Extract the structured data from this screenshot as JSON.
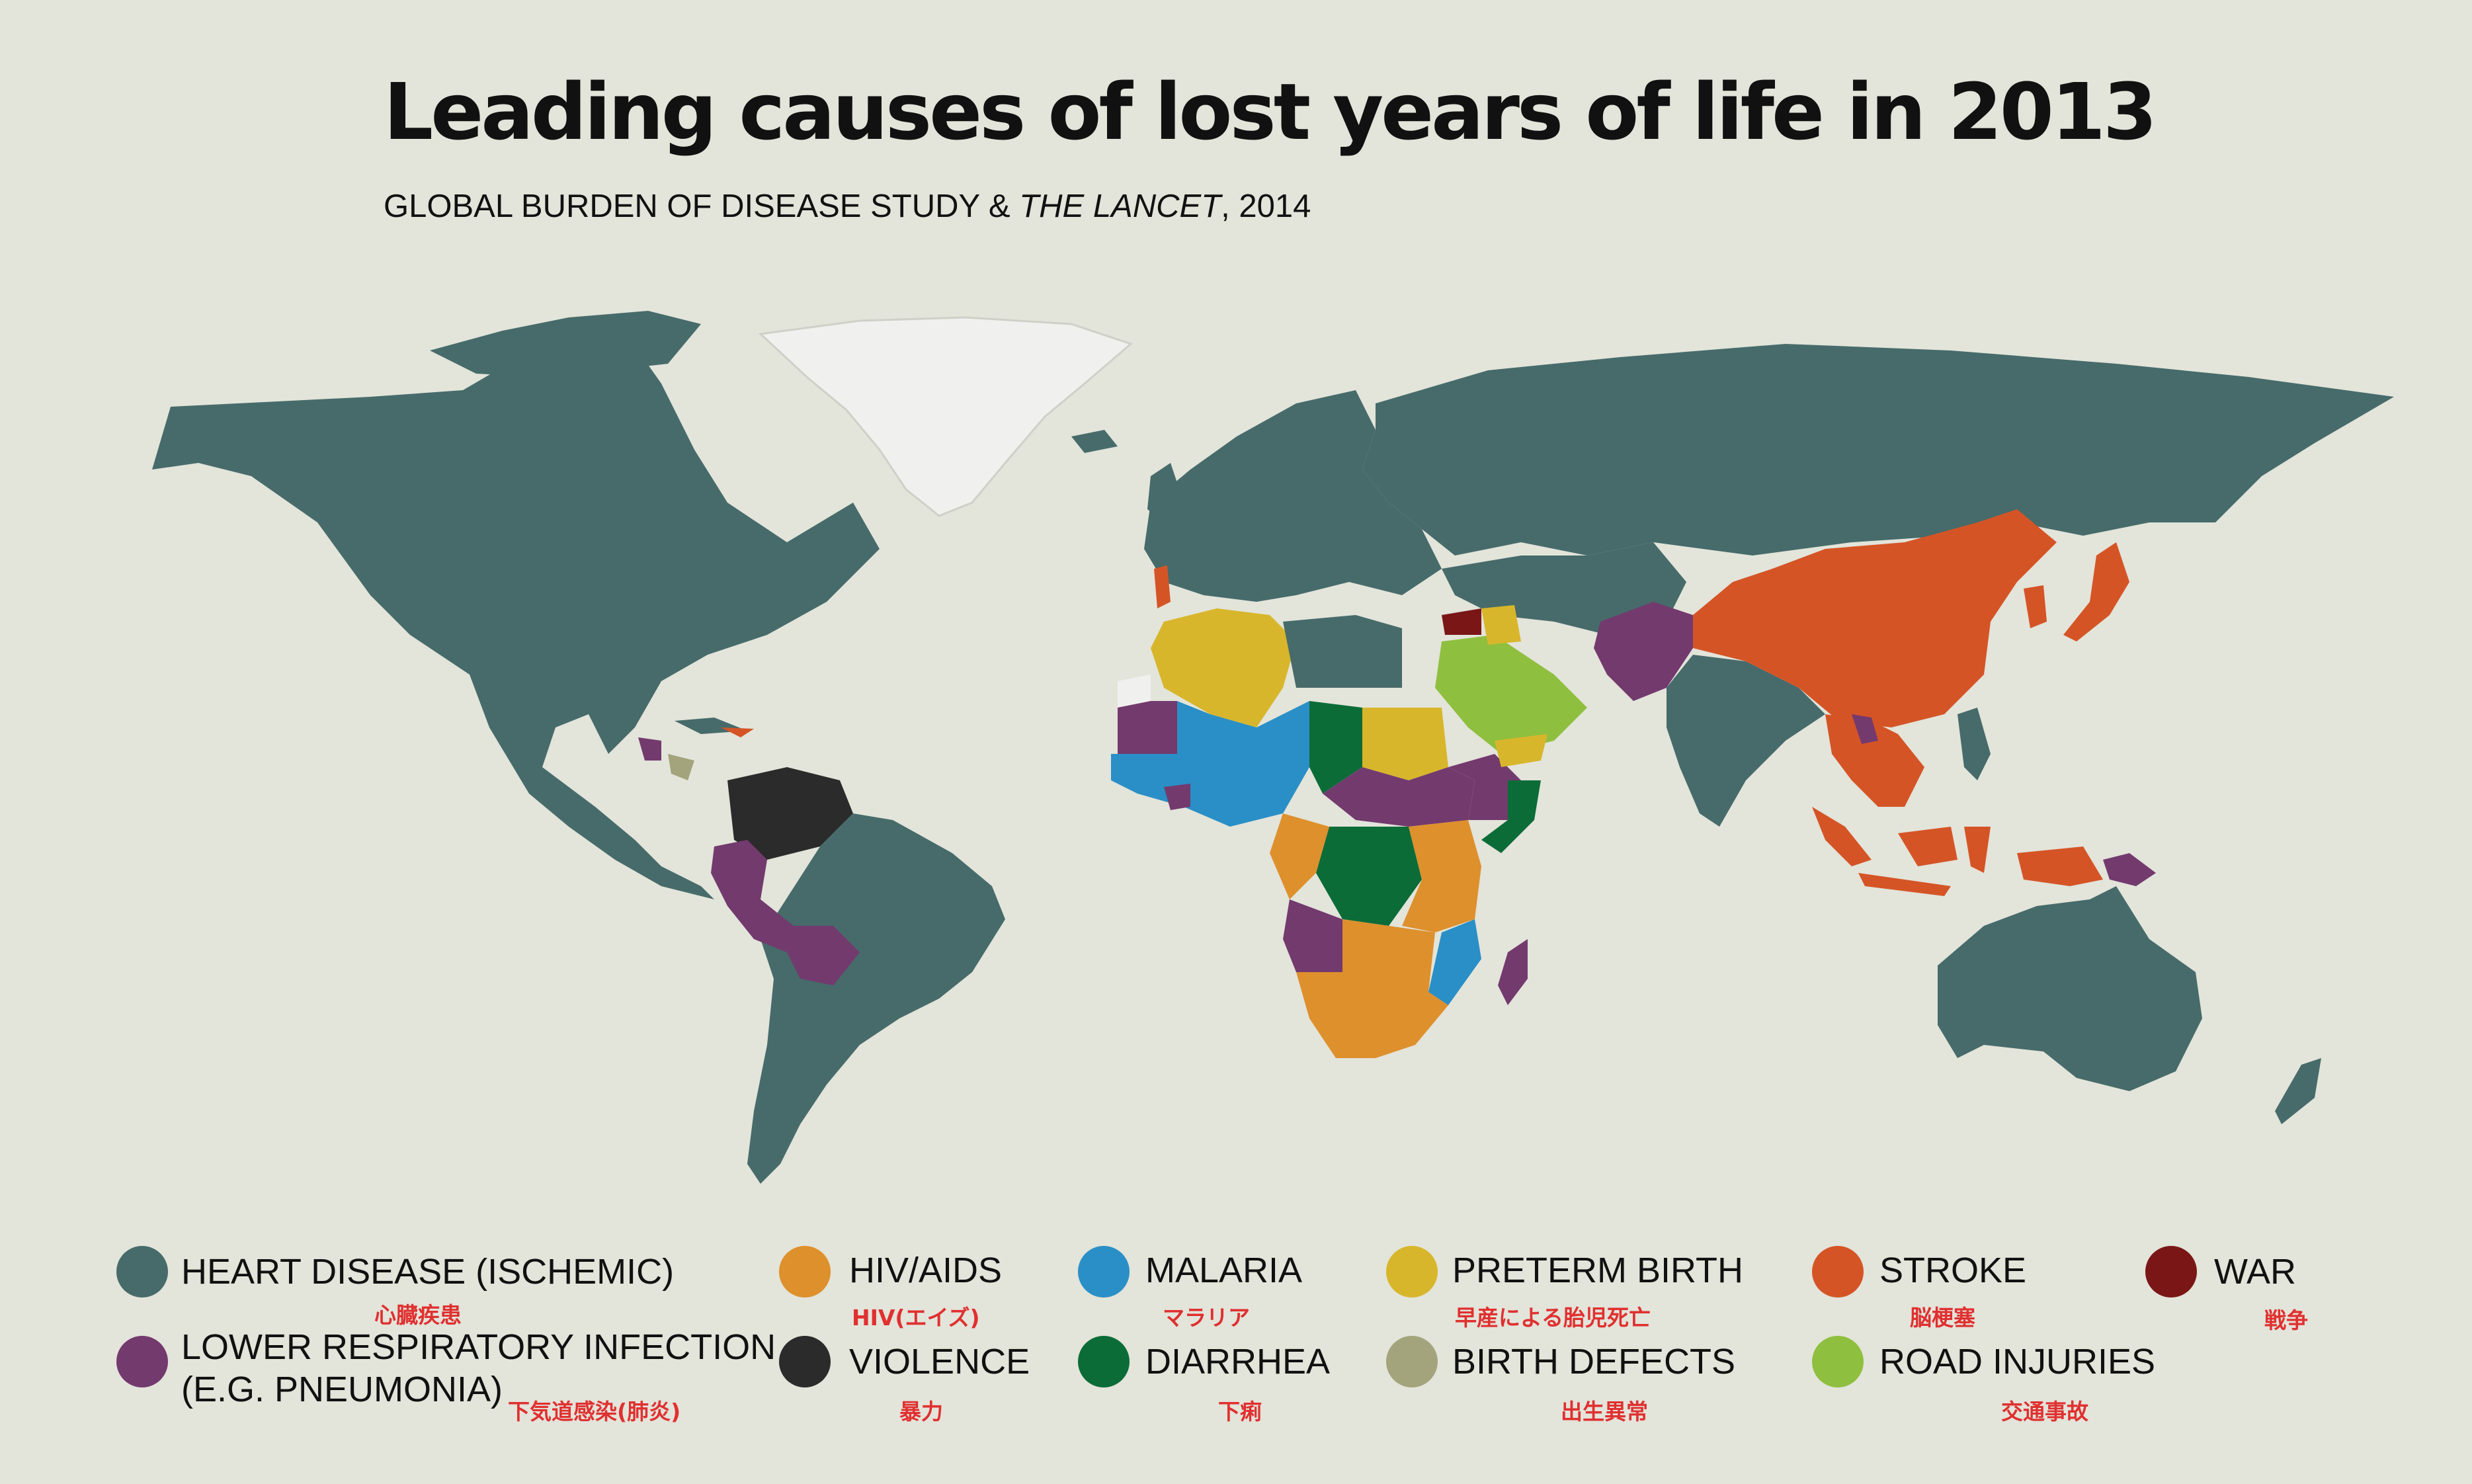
{
  "title": "Leading causes of lost years of life in 2013",
  "subtitle": {
    "prefix": "GLOBAL BURDEN OF DISEASE STUDY & ",
    "italic": "THE LANCET",
    "suffix": ", 2014"
  },
  "colors": {
    "background": "#e3e4da",
    "heart": "#466b6a",
    "respiratory": "#733a6e",
    "hiv": "#de902c",
    "violence": "#2b2b2b",
    "malaria": "#2a8fc6",
    "diarrhea": "#0b6c38",
    "preterm": "#d8b62b",
    "birth_defects": "#a3a47c",
    "stroke": "#d55426",
    "road": "#8fbf3f",
    "war": "#7a1616",
    "no_data": "#f0f1ee"
  },
  "legend": [
    {
      "key": "heart",
      "label": "HEART DISEASE (ISCHEMIC)",
      "sub": "心臓疾患"
    },
    {
      "key": "respiratory",
      "label": "LOWER RESPIRATORY INFECTION",
      "label2": "(E.G. PNEUMONIA)",
      "sub": "下気道感染(肺炎)"
    },
    {
      "key": "hiv",
      "label": "HIV/AIDS",
      "sub": "HIV(エイズ)"
    },
    {
      "key": "violence",
      "label": "VIOLENCE",
      "sub": "暴力"
    },
    {
      "key": "malaria",
      "label": "MALARIA",
      "sub": "マラリア"
    },
    {
      "key": "diarrhea",
      "label": "DIARRHEA",
      "sub": "下痢"
    },
    {
      "key": "preterm",
      "label": "PRETERM BIRTH",
      "sub": "早産による胎児死亡"
    },
    {
      "key": "birth_defects",
      "label": "BIRTH DEFECTS",
      "sub": "出生異常"
    },
    {
      "key": "stroke",
      "label": "STROKE",
      "sub": "脳梗塞"
    },
    {
      "key": "road",
      "label": "ROAD INJURIES",
      "sub": "交通事故"
    },
    {
      "key": "war",
      "label": "WAR",
      "sub": "戦争"
    }
  ]
}
